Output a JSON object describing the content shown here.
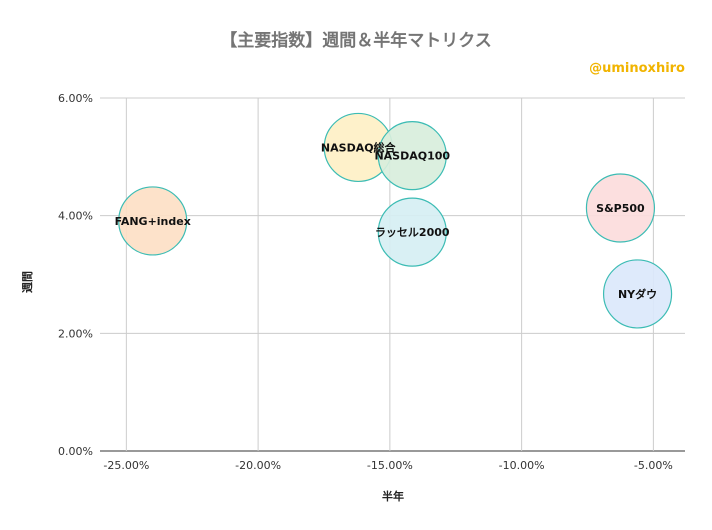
{
  "chart_data": {
    "type": "bubble",
    "title": "【主要指数】週間＆半年マトリクス",
    "credit": "@uminoxhiro",
    "xlabel": "半年",
    "ylabel": "週間",
    "xlim": [
      -0.26,
      -0.038
    ],
    "ylim": [
      0,
      0.06
    ],
    "x_ticks": [
      {
        "value": -0.25,
        "label": "-25.00%"
      },
      {
        "value": -0.2,
        "label": "-20.00%"
      },
      {
        "value": -0.15,
        "label": "-15.00%"
      },
      {
        "value": -0.1,
        "label": "-10.00%"
      },
      {
        "value": -0.05,
        "label": "-5.00%"
      }
    ],
    "y_ticks": [
      {
        "value": 0.0,
        "label": "0.00%"
      },
      {
        "value": 0.02,
        "label": "2.00%"
      },
      {
        "value": 0.04,
        "label": "4.00%"
      },
      {
        "value": 0.06,
        "label": "6.00%"
      }
    ],
    "grid": true,
    "points": [
      {
        "label": "FANG+index",
        "x": -0.24,
        "y": 0.0391,
        "color": "#fde0c6"
      },
      {
        "label": "NASDAQ総合",
        "x": -0.162,
        "y": 0.0516,
        "color": "#fef0c5"
      },
      {
        "label": "NASDAQ100",
        "x": -0.1415,
        "y": 0.0502,
        "color": "#d8eedc"
      },
      {
        "label": "ラッセル2000",
        "x": -0.1415,
        "y": 0.0372,
        "color": "#d6eff3"
      },
      {
        "label": "S&P500",
        "x": -0.0625,
        "y": 0.0413,
        "color": "#fcdcdc"
      },
      {
        "label": "NYダウ",
        "x": -0.056,
        "y": 0.0267,
        "color": "#dbe8fb"
      }
    ],
    "bubble_stroke": "#3cbcb4"
  }
}
